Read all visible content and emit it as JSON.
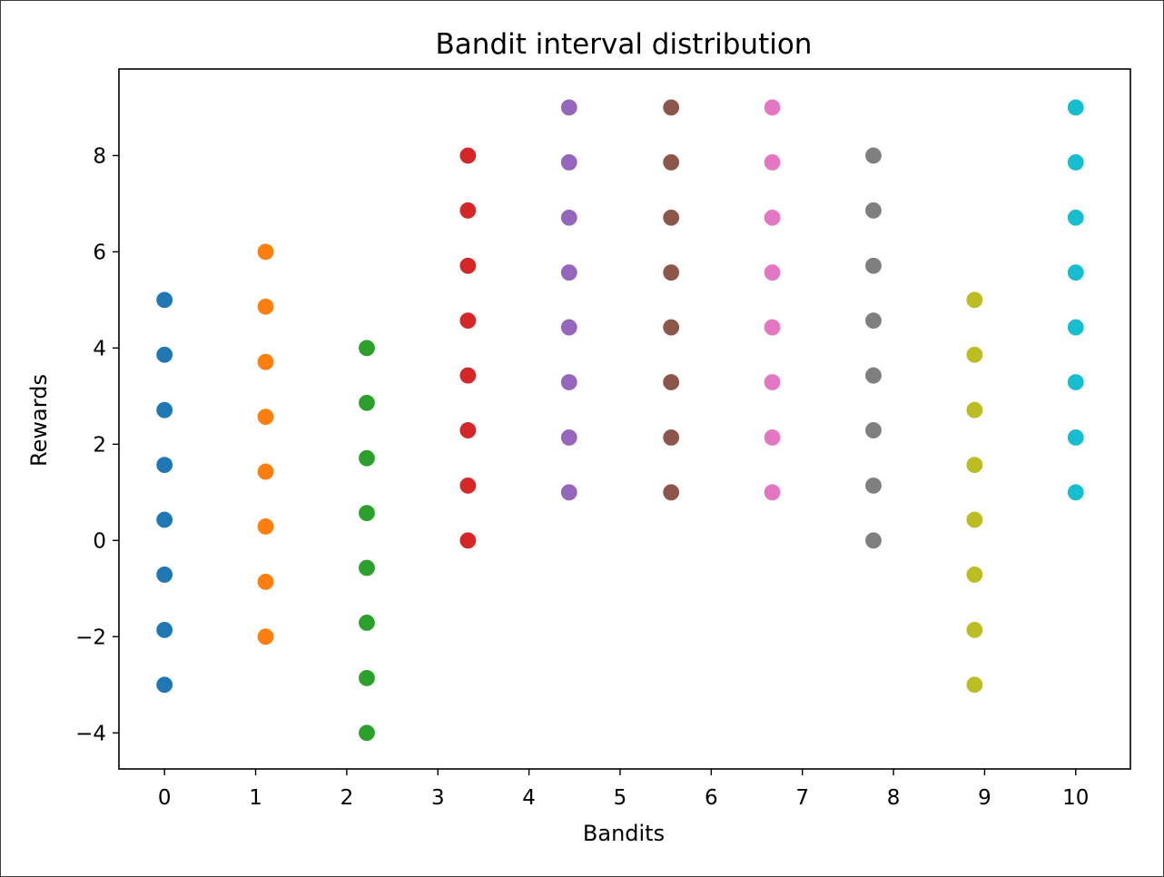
{
  "chart_data": {
    "type": "scatter",
    "title": "Bandit interval distribution",
    "xlabel": "Bandits",
    "ylabel": "Rewards",
    "xlim": [
      -0.5,
      10.6
    ],
    "ylim": [
      -4.75,
      9.8
    ],
    "xticks": [
      0,
      1,
      2,
      3,
      4,
      5,
      6,
      7,
      8,
      9,
      10
    ],
    "yticks": [
      -4,
      -2,
      0,
      2,
      4,
      6,
      8
    ],
    "ytick_labels": [
      "−4",
      "−2",
      "0",
      "2",
      "4",
      "6",
      "8"
    ],
    "grid": false,
    "legend": "none",
    "series": [
      {
        "color": "#1f77b4",
        "x": 0.0,
        "y": [
          5.0,
          3.86,
          2.71,
          1.57,
          0.43,
          -0.71,
          -1.86,
          -3.0
        ]
      },
      {
        "color": "#ff7f0e",
        "x": 1.11,
        "y": [
          6.0,
          4.86,
          3.71,
          2.57,
          1.43,
          0.29,
          -0.86,
          -2.0
        ]
      },
      {
        "color": "#2ca02c",
        "x": 2.22,
        "y": [
          4.0,
          2.86,
          1.71,
          0.57,
          -0.57,
          -1.71,
          -2.86,
          -4.0
        ]
      },
      {
        "color": "#d62728",
        "x": 3.33,
        "y": [
          8.0,
          6.86,
          5.71,
          4.57,
          3.43,
          2.29,
          1.14,
          0.0
        ]
      },
      {
        "color": "#9467bd",
        "x": 4.44,
        "y": [
          9.0,
          7.86,
          6.71,
          5.57,
          4.43,
          3.29,
          2.14,
          1.0
        ]
      },
      {
        "color": "#8c564b",
        "x": 5.56,
        "y": [
          9.0,
          7.86,
          6.71,
          5.57,
          4.43,
          3.29,
          2.14,
          1.0
        ]
      },
      {
        "color": "#e377c2",
        "x": 6.67,
        "y": [
          9.0,
          7.86,
          6.71,
          5.57,
          4.43,
          3.29,
          2.14,
          1.0
        ]
      },
      {
        "color": "#7f7f7f",
        "x": 7.78,
        "y": [
          8.0,
          6.86,
          5.71,
          4.57,
          3.43,
          2.29,
          1.14,
          0.0
        ]
      },
      {
        "color": "#bcbd22",
        "x": 8.89,
        "y": [
          5.0,
          3.86,
          2.71,
          1.57,
          0.43,
          -0.71,
          -1.86,
          -3.0
        ]
      },
      {
        "color": "#17becf",
        "x": 10.0,
        "y": [
          9.0,
          7.86,
          6.71,
          5.57,
          4.43,
          3.29,
          2.14,
          1.0
        ]
      }
    ]
  }
}
